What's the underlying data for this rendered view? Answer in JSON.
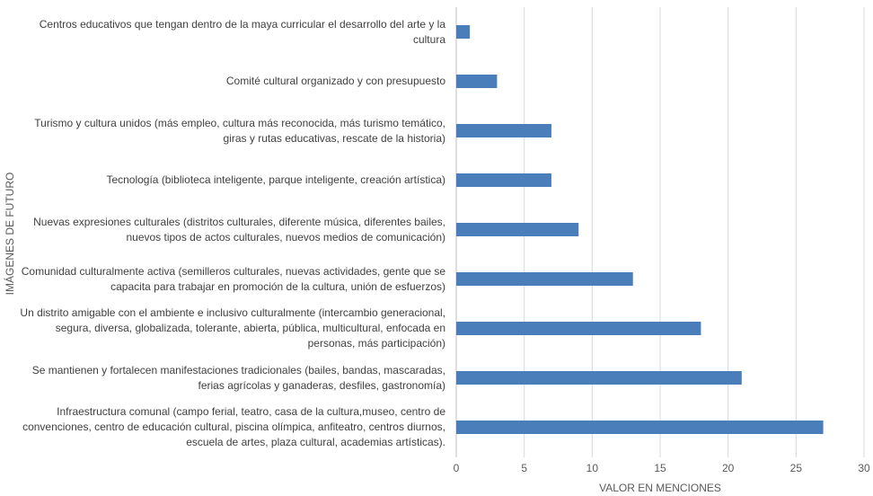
{
  "chart_data": {
    "type": "barh",
    "categories": [
      "Centros educativos que tengan dentro de la maya curricular el desarrollo del arte y la cultura",
      "Comité cultural organizado y con presupuesto",
      "Turismo y cultura unidos (más empleo, cultura más reconocida, más turismo temático, giras y rutas educativas, rescate de la historia)",
      "Tecnología (biblioteca inteligente, parque inteligente, creación artística)",
      "Nuevas expresiones culturales (distritos culturales, diferente música, diferentes bailes, nuevos tipos de actos culturales, nuevos medios de comunicación)",
      "Comunidad culturalmente activa (semilleros culturales, nuevas actividades, gente que se capacita para trabajar en promoción de la cultura, unión de esfuerzos)",
      "Un distrito amigable con el ambiente e inclusivo culturalmente (intercambio generacional, segura, diversa, globalizada, tolerante, abierta, pública, multicultural, enfocada en personas, más participación)",
      "Se mantienen y fortalecen manifestaciones tradicionales (bailes, bandas, mascaradas, ferias agrícolas y ganaderas, desfiles, gastronomía)",
      "Infraestructura comunal (campo ferial, teatro, casa de la cultura,museo, centro de convenciones, centro de educación cultural, piscina olímpica, anfiteatro, centros diurnos, escuela de artes, plaza cultural, academias artísticas)."
    ],
    "values": [
      1,
      3,
      7,
      7,
      9,
      13,
      18,
      21,
      27
    ],
    "color": "#4a7ebb",
    "xlim": [
      0,
      30
    ],
    "xticks": [
      0,
      5,
      10,
      15,
      20,
      25,
      30
    ],
    "grid": true,
    "xlabel": "VALOR EN MENCIONES",
    "ylabel": "IMÁGENES DE FUTURO"
  }
}
